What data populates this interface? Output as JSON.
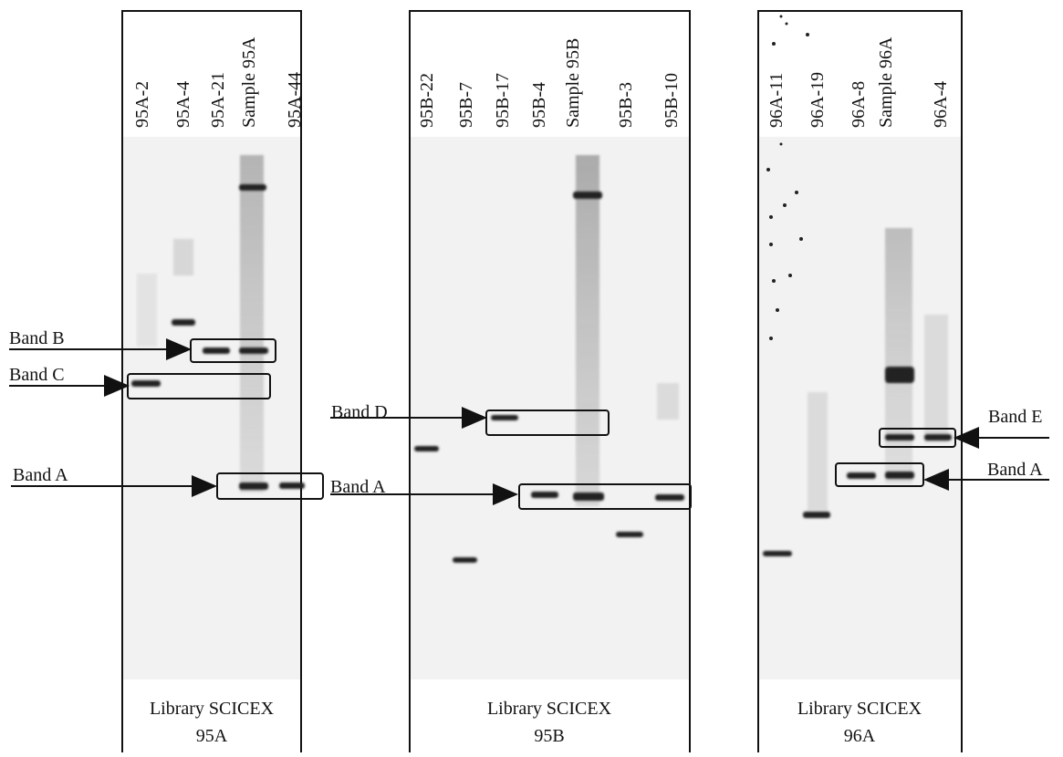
{
  "panels": [
    {
      "lanes": [
        "95A-2",
        "95A-4",
        "95A-21",
        "Sample 95A",
        "95A-44"
      ],
      "footer": [
        "Library SCICEX",
        "95A"
      ]
    },
    {
      "lanes": [
        "95B-22",
        "95B-7",
        "95B-17",
        "95B-4",
        "Sample 95B",
        "95B-3",
        "95B-10"
      ],
      "footer": [
        "Library SCICEX",
        "95B"
      ]
    },
    {
      "lanes": [
        "96A-11",
        "96A-19",
        "96A-8",
        "Sample 96A",
        "96A-4"
      ],
      "footer": [
        "Library SCICEX",
        "96A"
      ]
    }
  ],
  "annotations": [
    "Band B",
    "Band C",
    "Band A",
    "Band D",
    "Band A",
    "Band E",
    "Band A"
  ]
}
